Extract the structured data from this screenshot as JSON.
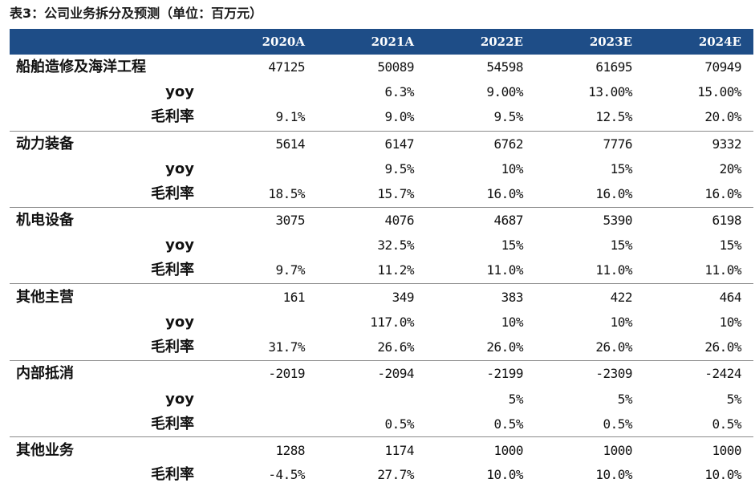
{
  "title": "表3：公司业务拆分及预测（单位：百万元）",
  "columns": [
    "2020A",
    "2021A",
    "2022E",
    "2023E",
    "2024E"
  ],
  "segments": [
    {
      "name": "船舶造修及海洋工程",
      "values": [
        "47125",
        "50089",
        "54598",
        "61695",
        "70949"
      ],
      "yoy_label": "yoy",
      "yoy": [
        "",
        "6.3%",
        "9.00%",
        "13.00%",
        "15.00%"
      ],
      "gm_label": "毛利率",
      "gm": [
        "9.1%",
        "9.0%",
        "9.5%",
        "12.5%",
        "20.0%"
      ]
    },
    {
      "name": "动力装备",
      "values": [
        "5614",
        "6147",
        "6762",
        "7776",
        "9332"
      ],
      "yoy_label": "yoy",
      "yoy": [
        "",
        "9.5%",
        "10%",
        "15%",
        "20%"
      ],
      "gm_label": "毛利率",
      "gm": [
        "18.5%",
        "15.7%",
        "16.0%",
        "16.0%",
        "16.0%"
      ]
    },
    {
      "name": "机电设备",
      "values": [
        "3075",
        "4076",
        "4687",
        "5390",
        "6198"
      ],
      "yoy_label": "yoy",
      "yoy": [
        "",
        "32.5%",
        "15%",
        "15%",
        "15%"
      ],
      "gm_label": "毛利率",
      "gm": [
        "9.7%",
        "11.2%",
        "11.0%",
        "11.0%",
        "11.0%"
      ]
    },
    {
      "name": "其他主营",
      "values": [
        "161",
        "349",
        "383",
        "422",
        "464"
      ],
      "yoy_label": "yoy",
      "yoy": [
        "",
        "117.0%",
        "10%",
        "10%",
        "10%"
      ],
      "gm_label": "毛利率",
      "gm": [
        "31.7%",
        "26.6%",
        "26.0%",
        "26.0%",
        "26.0%"
      ]
    },
    {
      "name": "内部抵消",
      "values": [
        "-2019",
        "-2094",
        "-2199",
        "-2309",
        "-2424"
      ],
      "yoy_label": "yoy",
      "yoy": [
        "",
        "",
        "5%",
        "5%",
        "5%"
      ],
      "gm_label": "毛利率",
      "gm": [
        "",
        "0.5%",
        "0.5%",
        "0.5%",
        "0.5%"
      ]
    },
    {
      "name": "其他业务",
      "values": [
        "1288",
        "1174",
        "1000",
        "1000",
        "1000"
      ],
      "gm_label": "毛利率",
      "gm": [
        "-4.5%",
        "27.7%",
        "10.0%",
        "10.0%",
        "10.0%"
      ]
    }
  ],
  "colors": {
    "header_bg": "#1e4d87",
    "header_text": "#ffffff",
    "separator": "#8a8a8a"
  }
}
